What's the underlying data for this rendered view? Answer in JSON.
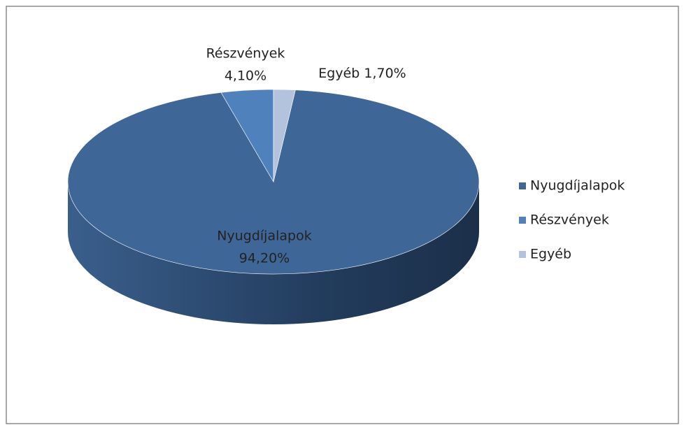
{
  "chart_data": {
    "type": "pie",
    "categories": [
      "Nyugdíjalapok",
      "Részvények",
      "Egyéb"
    ],
    "values": [
      94.2,
      4.1,
      1.7
    ],
    "value_labels": [
      "94,20%",
      "4,10%",
      "1,70%"
    ],
    "colors": [
      "#3e6797",
      "#4f81bd",
      "#b4c3dd"
    ],
    "legend": "right"
  }
}
